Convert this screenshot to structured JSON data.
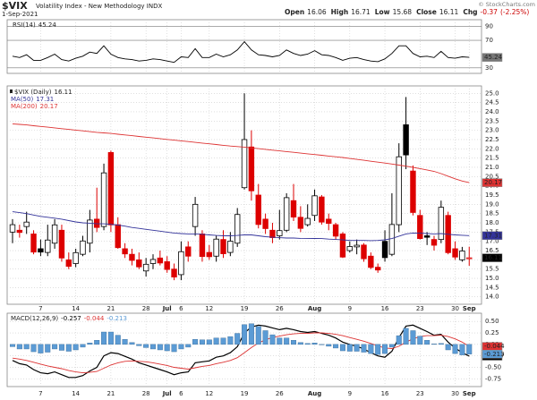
{
  "chart_data": [
    {
      "type": "line",
      "ylim": [
        22,
        100
      ],
      "yticks": [
        30,
        70,
        90
      ],
      "series": [
        {
          "name": "RSI(14)",
          "color": "#000000",
          "values": [
            47,
            45,
            49,
            41,
            41,
            45,
            50,
            42,
            40,
            44,
            47,
            53,
            51,
            62,
            50,
            45,
            43,
            42,
            40,
            41,
            43,
            42,
            40,
            38,
            46,
            45,
            58,
            45,
            45,
            50,
            46,
            49,
            56,
            68,
            56,
            49,
            48,
            46,
            48,
            56,
            51,
            48,
            50,
            55,
            49,
            48,
            45,
            41,
            44,
            45,
            42,
            40,
            39,
            43,
            51,
            62,
            62,
            51,
            46,
            47,
            45,
            54,
            45,
            44,
            46,
            45.24
          ]
        }
      ]
    },
    {
      "type": "candlestick",
      "title": "$VIX",
      "subtitle": "Volatility Index - New Methodology INDX",
      "date": "1-Sep-2021",
      "quote": [
        {
          "label": "Open",
          "value": 16.06
        },
        {
          "label": "High",
          "value": 16.71
        },
        {
          "label": "Low",
          "value": 15.68
        },
        {
          "label": "Close",
          "value": 16.11
        },
        {
          "label": "Chg",
          "value": -0.37
        }
      ],
      "change_percent": {
        "value": -2.25,
        "label": "(-2.25%)"
      },
      "credit": "© StockCharts.com",
      "categories": [
        null,
        null,
        null,
        null,
        "7",
        null,
        null,
        null,
        null,
        "14",
        null,
        null,
        null,
        null,
        "21",
        null,
        null,
        null,
        null,
        "28",
        null,
        null,
        "Jul",
        null,
        "6",
        null,
        null,
        null,
        "12",
        null,
        null,
        null,
        null,
        "19",
        null,
        null,
        null,
        null,
        "26",
        null,
        null,
        null,
        null,
        "Aug",
        null,
        null,
        null,
        null,
        "9",
        null,
        null,
        null,
        null,
        "16",
        null,
        null,
        null,
        null,
        "23",
        null,
        null,
        null,
        null,
        "30",
        null,
        "Sep"
      ],
      "ylim": [
        13.6,
        25.4
      ],
      "yticks": [
        {
          "value": 14,
          "label": "14.0"
        },
        14.5,
        {
          "value": 15,
          "label": "15.0"
        },
        15.5,
        {
          "value": 16,
          "label": "16.0"
        },
        16.5,
        {
          "value": 17,
          "label": "17.0"
        },
        17.5,
        {
          "value": 18,
          "label": "18.0"
        },
        18.5,
        {
          "value": 19,
          "label": "19.0"
        },
        19.5,
        {
          "value": 20,
          "label": "20.0"
        },
        20.5,
        {
          "value": 21,
          "label": "21.0"
        },
        21.5,
        {
          "value": 22,
          "label": "22.0"
        },
        22.5,
        {
          "value": 23,
          "label": "23.0"
        },
        23.5,
        {
          "value": 24,
          "label": "24.0"
        },
        24.5,
        {
          "value": 25,
          "label": "25.0"
        }
      ],
      "series": [
        {
          "name": "$VIX (Daily)",
          "type": "candlestick",
          "up_color": "#000000",
          "down_color": "#dd0000",
          "open": [
            17.5,
            17.6,
            17.8,
            17.4,
            16.6,
            16.4,
            16.9,
            17.6,
            16.0,
            15.8,
            16.3,
            16.9,
            18.2,
            17.8,
            21.8,
            17.9,
            16.6,
            16.3,
            16.0,
            15.4,
            15.8,
            16.1,
            15.9,
            15.5,
            15.2,
            16.7,
            17.8,
            17.4,
            16.4,
            16.2,
            17.1,
            16.4,
            16.9,
            19.9,
            22.1,
            19.5,
            18.2,
            17.6,
            17.3,
            17.6,
            19.2,
            18.3,
            17.9,
            18.4,
            19.4,
            18.2,
            17.9,
            17.4,
            16.5,
            16.7,
            16.8,
            16.2,
            15.6,
            17.0,
            16.3,
            17.9,
            23.3,
            20.8,
            18.4,
            17.3,
            17.1,
            17.1,
            18.4,
            16.6,
            16.0,
            16.06
          ],
          "high": [
            18.2,
            17.9,
            18.6,
            17.6,
            17.1,
            17.9,
            18.2,
            17.9,
            16.4,
            16.6,
            17.3,
            18.7,
            19.9,
            21.2,
            21.9,
            18.3,
            16.9,
            16.6,
            16.4,
            16.1,
            16.3,
            16.5,
            16.2,
            15.8,
            17.0,
            17.0,
            19.4,
            17.6,
            16.8,
            17.3,
            17.6,
            17.5,
            18.8,
            25.0,
            23.0,
            20.1,
            18.5,
            18.0,
            18.7,
            19.6,
            20.1,
            18.9,
            19.0,
            19.8,
            19.5,
            18.5,
            18.0,
            17.5,
            17.0,
            17.1,
            16.9,
            16.4,
            15.8,
            17.6,
            19.6,
            22.3,
            24.8,
            21.1,
            18.7,
            17.5,
            17.3,
            19.2,
            18.6,
            17.0,
            16.7,
            16.71
          ],
          "low": [
            16.9,
            17.2,
            17.4,
            16.3,
            16.2,
            16.2,
            16.6,
            15.9,
            15.5,
            15.6,
            16.2,
            16.4,
            17.5,
            17.6,
            17.5,
            16.6,
            16.1,
            15.7,
            15.5,
            15.1,
            15.5,
            15.7,
            15.3,
            14.9,
            14.9,
            15.9,
            17.3,
            15.9,
            16.0,
            15.9,
            16.1,
            16.2,
            16.7,
            19.8,
            19.2,
            17.7,
            17.4,
            16.9,
            17.1,
            17.5,
            18.1,
            17.5,
            17.8,
            18.1,
            17.9,
            17.6,
            17.1,
            16.1,
            16.4,
            16.3,
            15.9,
            15.5,
            15.3,
            15.9,
            16.2,
            17.5,
            20.9,
            18.4,
            17.1,
            16.8,
            16.5,
            16.9,
            16.3,
            16.0,
            15.9,
            15.68
          ],
          "close": [
            17.9,
            17.48,
            18.04,
            16.42,
            16.42,
            17.07,
            17.89,
            16.1,
            15.65,
            16.39,
            17.02,
            18.15,
            17.75,
            20.7,
            17.89,
            16.66,
            16.32,
            15.97,
            15.62,
            15.76,
            16.02,
            15.83,
            15.48,
            15.07,
            16.44,
            16.2,
            19.0,
            16.18,
            16.17,
            17.12,
            16.33,
            17.01,
            18.45,
            22.5,
            19.73,
            17.91,
            17.69,
            17.2,
            17.58,
            19.36,
            18.31,
            17.7,
            18.24,
            19.46,
            18.04,
            17.97,
            17.28,
            16.15,
            16.72,
            16.79,
            16.06,
            15.59,
            15.45,
            16.12,
            17.91,
            21.57,
            21.67,
            18.56,
            17.15,
            17.22,
            16.79,
            18.84,
            16.39,
            16.15,
            16.48,
            16.11
          ]
        },
        {
          "name": "MA(50)",
          "type": "line",
          "color": "#33339a",
          "values": [
            18.6,
            18.55,
            18.5,
            18.42,
            18.35,
            18.3,
            18.25,
            18.2,
            18.12,
            18.05,
            18.0,
            17.98,
            17.95,
            17.95,
            17.92,
            17.88,
            17.82,
            17.75,
            17.7,
            17.65,
            17.6,
            17.55,
            17.5,
            17.45,
            17.42,
            17.4,
            17.4,
            17.38,
            17.35,
            17.32,
            17.3,
            17.3,
            17.32,
            17.35,
            17.35,
            17.3,
            17.25,
            17.22,
            17.2,
            17.18,
            17.18,
            17.16,
            17.15,
            17.16,
            17.15,
            17.12,
            17.1,
            17.08,
            17.05,
            17.05,
            17.05,
            17.04,
            17.05,
            17.08,
            17.15,
            17.28,
            17.4,
            17.45,
            17.44,
            17.42,
            17.4,
            17.42,
            17.38,
            17.35,
            17.33,
            17.31
          ]
        },
        {
          "name": "MA(200)",
          "type": "line",
          "color": "#dd3333",
          "values": [
            23.35,
            23.32,
            23.29,
            23.25,
            23.21,
            23.17,
            23.13,
            23.09,
            23.05,
            23.01,
            22.97,
            22.93,
            22.89,
            22.86,
            22.83,
            22.79,
            22.75,
            22.71,
            22.67,
            22.63,
            22.59,
            22.55,
            22.51,
            22.47,
            22.43,
            22.39,
            22.35,
            22.31,
            22.27,
            22.23,
            22.19,
            22.15,
            22.12,
            22.09,
            22.05,
            22.01,
            21.97,
            21.93,
            21.89,
            21.85,
            21.81,
            21.77,
            21.73,
            21.69,
            21.65,
            21.61,
            21.57,
            21.53,
            21.48,
            21.43,
            21.38,
            21.33,
            21.28,
            21.23,
            21.18,
            21.12,
            21.06,
            21.0,
            20.93,
            20.86,
            20.78,
            20.66,
            20.52,
            20.38,
            20.26,
            20.17
          ]
        }
      ]
    },
    {
      "type": "line",
      "ylim": [
        -0.92,
        0.68
      ],
      "yticks": [
        {
          "value": 0.5,
          "label": "0.50"
        },
        0.25,
        {
          "value": 0,
          "label": "0.00"
        },
        -0.25,
        {
          "value": -0.5,
          "label": "-0.50"
        },
        -0.75
      ],
      "series": [
        {
          "name": "MACD(12,26,9)",
          "color": "#000000",
          "values": [
            -0.35,
            -0.42,
            -0.45,
            -0.55,
            -0.62,
            -0.64,
            -0.6,
            -0.66,
            -0.72,
            -0.72,
            -0.68,
            -0.58,
            -0.5,
            -0.25,
            -0.18,
            -0.2,
            -0.26,
            -0.32,
            -0.4,
            -0.45,
            -0.5,
            -0.55,
            -0.6,
            -0.66,
            -0.62,
            -0.6,
            -0.4,
            -0.38,
            -0.36,
            -0.28,
            -0.25,
            -0.18,
            -0.05,
            0.25,
            0.38,
            0.42,
            0.4,
            0.36,
            0.32,
            0.35,
            0.32,
            0.28,
            0.26,
            0.28,
            0.24,
            0.2,
            0.14,
            0.05,
            0.0,
            -0.04,
            -0.1,
            -0.18,
            -0.25,
            -0.28,
            -0.15,
            0.15,
            0.4,
            0.42,
            0.35,
            0.28,
            0.2,
            0.22,
            0.05,
            -0.08,
            -0.18,
            -0.257
          ]
        },
        {
          "color": "#dd3333",
          "values": [
            -0.3,
            -0.32,
            -0.35,
            -0.39,
            -0.43,
            -0.47,
            -0.5,
            -0.53,
            -0.57,
            -0.6,
            -0.62,
            -0.61,
            -0.59,
            -0.52,
            -0.45,
            -0.4,
            -0.37,
            -0.36,
            -0.37,
            -0.38,
            -0.4,
            -0.43,
            -0.46,
            -0.5,
            -0.52,
            -0.54,
            -0.51,
            -0.48,
            -0.46,
            -0.42,
            -0.39,
            -0.35,
            -0.29,
            -0.18,
            -0.07,
            0.03,
            0.1,
            0.15,
            0.18,
            0.21,
            0.23,
            0.24,
            0.24,
            0.25,
            0.25,
            0.24,
            0.22,
            0.19,
            0.15,
            0.11,
            0.07,
            0.02,
            -0.03,
            -0.08,
            -0.09,
            -0.04,
            0.05,
            0.12,
            0.17,
            0.19,
            0.19,
            0.2,
            0.17,
            0.12,
            0.05,
            -0.044
          ]
        },
        {
          "type": "bar",
          "color": "#5b9bd5",
          "values": [
            -0.05,
            -0.1,
            -0.1,
            -0.16,
            -0.19,
            -0.17,
            -0.1,
            -0.13,
            -0.15,
            -0.12,
            -0.06,
            0.03,
            0.09,
            0.27,
            0.27,
            0.2,
            0.11,
            0.04,
            -0.03,
            -0.07,
            -0.1,
            -0.12,
            -0.14,
            -0.16,
            -0.1,
            -0.06,
            0.11,
            0.1,
            0.1,
            0.14,
            0.14,
            0.17,
            0.24,
            0.43,
            0.45,
            0.39,
            0.3,
            0.21,
            0.14,
            0.14,
            0.09,
            0.04,
            0.02,
            0.03,
            -0.01,
            -0.04,
            -0.08,
            -0.14,
            -0.15,
            -0.15,
            -0.17,
            -0.2,
            -0.22,
            -0.2,
            -0.06,
            0.19,
            0.35,
            0.3,
            0.18,
            0.09,
            0.01,
            0.02,
            -0.12,
            -0.2,
            -0.23,
            -0.213
          ]
        }
      ]
    }
  ]
}
